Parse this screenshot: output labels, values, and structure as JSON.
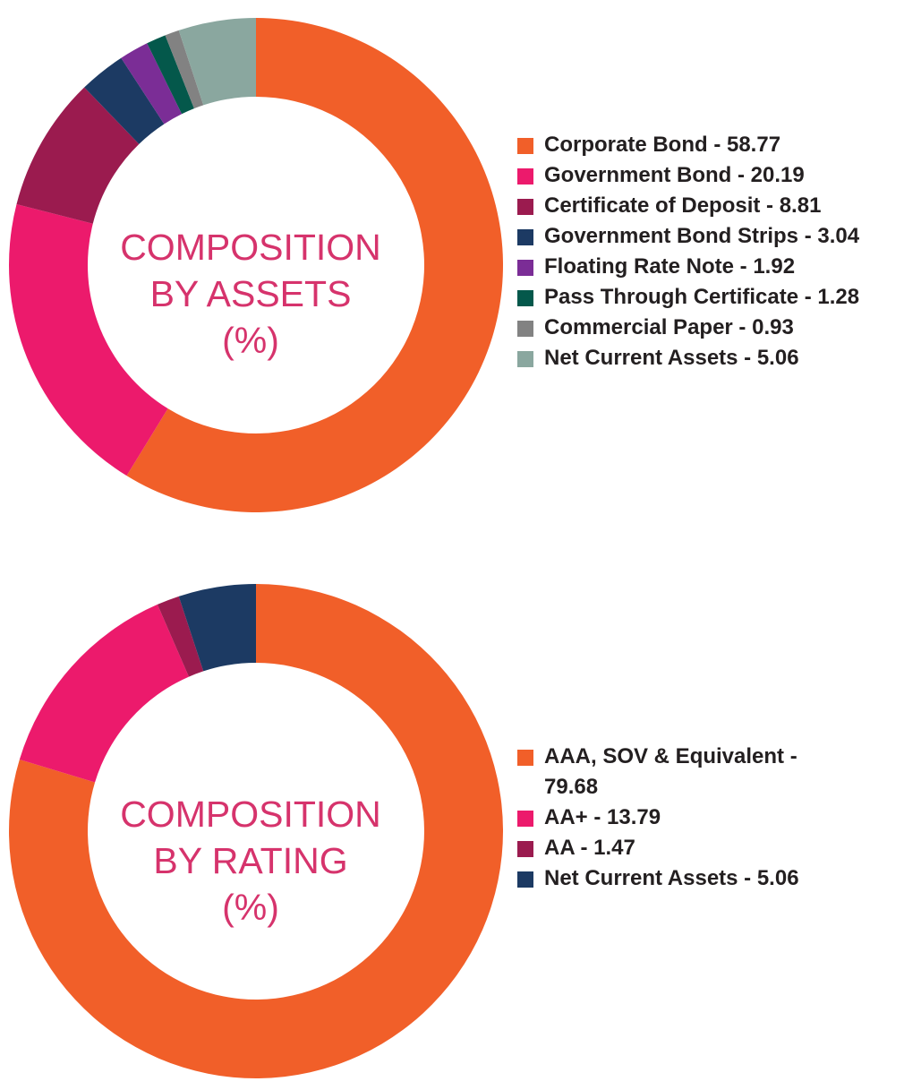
{
  "chart_data": [
    {
      "type": "pie",
      "title": [
        "COMPOSITION",
        "BY ASSETS",
        "(%)"
      ],
      "categories": [
        "Corporate Bond",
        "Government Bond",
        "Certificate of Deposit",
        "Government Bond Strips",
        "Floating Rate Note",
        "Pass Through Certificate",
        "Commercial Paper",
        "Net Current Assets"
      ],
      "values": [
        58.77,
        20.19,
        8.81,
        3.04,
        1.92,
        1.28,
        0.93,
        5.06
      ],
      "colors": [
        "#f15f29",
        "#ec1a6c",
        "#9b1b4f",
        "#1c3a63",
        "#7b2d96",
        "#04584b",
        "#828282",
        "#8aa79f"
      ],
      "legend_labels": [
        "Corporate Bond - 58.77",
        "Government Bond - 20.19",
        "Certificate of Deposit - 8.81",
        "Government Bond Strips - 3.04",
        "Floating Rate Note - 1.92",
        "Pass Through Certificate - 1.28",
        "Commercial Paper - 0.93",
        "Net Current Assets - 5.06"
      ],
      "legend_position": "right",
      "donut": true
    },
    {
      "type": "pie",
      "title": [
        "COMPOSITION",
        "BY RATING",
        "(%)"
      ],
      "categories": [
        "AAA, SOV & Equivalent",
        "AA+",
        "AA",
        "Net Current Assets"
      ],
      "values": [
        79.68,
        13.79,
        1.47,
        5.06
      ],
      "colors": [
        "#f15f29",
        "#ec1a6c",
        "#9b1b4f",
        "#1c3a63"
      ],
      "legend_labels": [
        "AAA, SOV & Equivalent - 79.68",
        "AA+ - 13.79",
        "AA - 1.47",
        "Net Current Assets - 5.06"
      ],
      "legend_position": "right",
      "donut": true
    }
  ]
}
